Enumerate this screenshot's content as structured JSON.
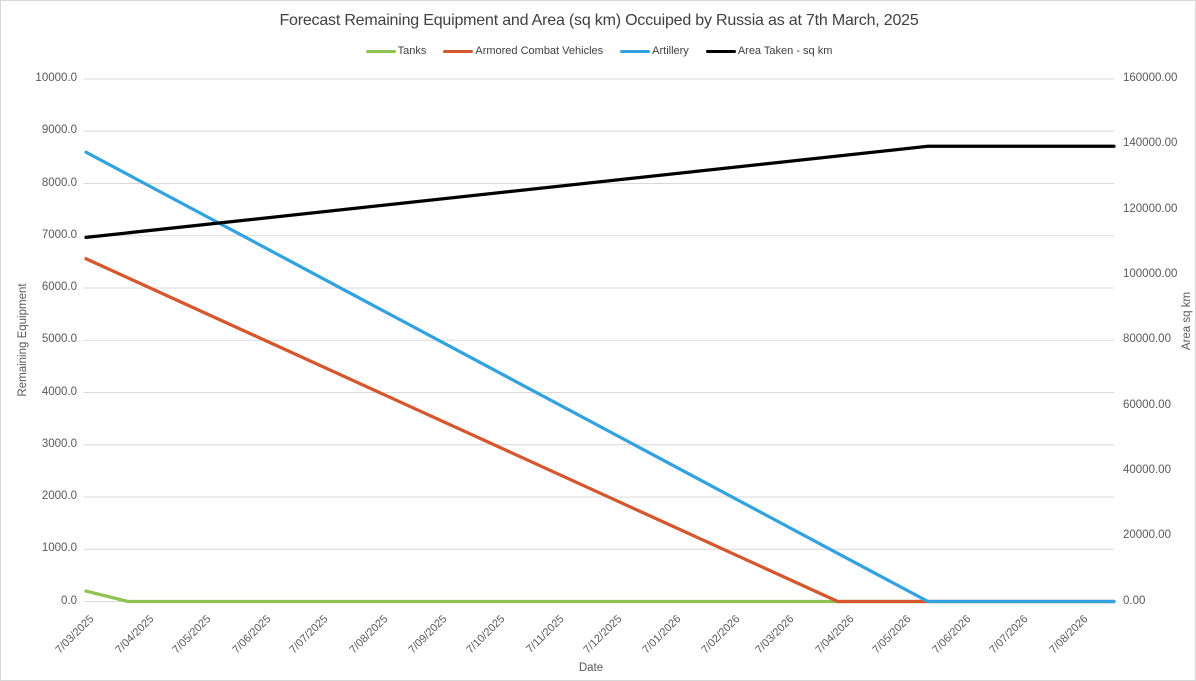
{
  "title": "Forecast Remaining Equipment and Area (sq km) Occuiped by Russia as at 7th March, 2025",
  "legend": {
    "position": "top",
    "items": [
      {
        "label": "Tanks",
        "color": "#90C352"
      },
      {
        "label": "Armored Combat Vehicles",
        "color": "#D4572E"
      },
      {
        "label": "Artillery",
        "color": "#33A2E1"
      },
      {
        "label": "Area Taken - sq km",
        "color": "#000000"
      }
    ]
  },
  "axes": {
    "x": {
      "title": "Date",
      "tick_labels": [
        "7/03/2025",
        "7/04/2025",
        "7/05/2025",
        "7/06/2025",
        "7/07/2025",
        "7/08/2025",
        "7/09/2025",
        "7/10/2025",
        "7/11/2025",
        "7/12/2025",
        "7/01/2026",
        "7/02/2026",
        "7/03/2026",
        "7/04/2026",
        "7/05/2026",
        "7/06/2026",
        "7/07/2026",
        "7/08/2026"
      ],
      "tick_day_offsets": [
        0,
        31,
        61,
        92,
        122,
        153,
        184,
        214,
        245,
        275,
        306,
        337,
        365,
        396,
        426,
        457,
        487,
        518
      ],
      "total_days": 536
    },
    "y_left": {
      "title": "Remaining Equipment",
      "min": 0,
      "max": 10000,
      "step": 1000,
      "tick_labels": [
        "0.0",
        "1000.0",
        "2000.0",
        "3000.0",
        "4000.0",
        "5000.0",
        "6000.0",
        "7000.0",
        "8000.0",
        "9000.0",
        "10000.0"
      ]
    },
    "y_right": {
      "title": "Area sq km",
      "min": 0,
      "max": 160000,
      "step": 20000,
      "tick_labels": [
        "0.00",
        "20000.00",
        "40000.00",
        "60000.00",
        "80000.00",
        "100000.00",
        "120000.00",
        "140000.00",
        "160000.00"
      ]
    }
  },
  "chart_data": {
    "type": "line",
    "title": "Forecast Remaining Equipment and Area (sq km) Occuiped by Russia as at 7th March, 2025",
    "xlabel": "Date",
    "ylabel": "Remaining Equipment",
    "ylabel_right": "Area sq km",
    "x_unit": "days since 7/03/2025",
    "x_range_days": [
      0,
      536
    ],
    "ylim_left": [
      0,
      10000
    ],
    "ylim_right": [
      0,
      160000
    ],
    "grid": "horizontal",
    "legend_position": "top",
    "categories": [
      "7/03/2025",
      "7/04/2025",
      "7/05/2025",
      "7/06/2025",
      "7/07/2025",
      "7/08/2025",
      "7/09/2025",
      "7/10/2025",
      "7/11/2025",
      "7/12/2025",
      "7/01/2026",
      "7/02/2026",
      "7/03/2026",
      "7/04/2026",
      "7/05/2026",
      "7/06/2026",
      "7/07/2026",
      "7/08/2026"
    ],
    "series": [
      {
        "name": "Tanks",
        "axis": "left",
        "color": "#90C352",
        "breakpoints_day_value": [
          [
            0,
            200
          ],
          [
            22,
            0
          ],
          [
            536,
            0
          ]
        ],
        "values_at_ticks": [
          200,
          0,
          0,
          0,
          0,
          0,
          0,
          0,
          0,
          0,
          0,
          0,
          0,
          0,
          0,
          0,
          0,
          0
        ]
      },
      {
        "name": "Armored Combat Vehicles",
        "axis": "left",
        "color": "#D4572E",
        "breakpoints_day_value": [
          [
            0,
            6560
          ],
          [
            392,
            0
          ],
          [
            536,
            0
          ]
        ],
        "values_at_ticks": [
          6560,
          6041,
          5539,
          5020,
          4518,
          4000,
          3481,
          2979,
          2460,
          1958,
          1439,
          920,
          452,
          0,
          0,
          0,
          0,
          0
        ]
      },
      {
        "name": "Artillery",
        "axis": "left",
        "color": "#33A2E1",
        "breakpoints_day_value": [
          [
            0,
            8600
          ],
          [
            439,
            0
          ],
          [
            536,
            0
          ]
        ],
        "values_at_ticks": [
          8600,
          7993,
          7405,
          6798,
          6210,
          5603,
          4996,
          4408,
          3801,
          3213,
          2606,
          1998,
          1450,
          843,
          255,
          0,
          0,
          0
        ]
      },
      {
        "name": "Area Taken - sq km",
        "axis": "right",
        "color": "#000000",
        "breakpoints_day_value": [
          [
            0,
            111500
          ],
          [
            439,
            139400
          ],
          [
            536,
            139400
          ]
        ],
        "values_at_ticks": [
          111500,
          113470,
          115377,
          117347,
          119253,
          121223,
          123193,
          125100,
          127070,
          128976,
          130946,
          132916,
          134696,
          136666,
          138573,
          139400,
          139400,
          139400
        ]
      }
    ]
  },
  "colors": {
    "gridline": "#D9D9D9",
    "canvas_border": "#D7D7D7",
    "axis_text": "#595959",
    "title_text": "#404040"
  }
}
